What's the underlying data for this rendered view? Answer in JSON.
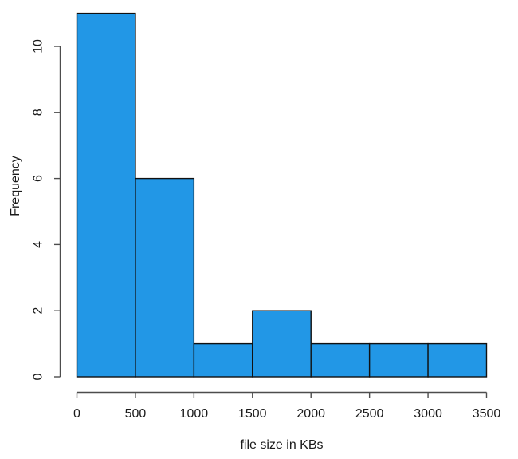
{
  "chart_data": {
    "type": "bar",
    "subtype": "histogram",
    "title": "",
    "xlabel": "file size in KBs",
    "ylabel": "Frequency",
    "breaks": [
      0,
      500,
      1000,
      1500,
      2000,
      2500,
      3000,
      3500
    ],
    "counts": [
      11,
      6,
      1,
      2,
      1,
      1,
      1
    ],
    "x_ticks": [
      0,
      500,
      1000,
      1500,
      2000,
      2500,
      3000,
      3500
    ],
    "y_ticks": [
      0,
      2,
      4,
      6,
      8,
      10
    ],
    "xlim": [
      0,
      3500
    ],
    "ylim": [
      0,
      11
    ],
    "grid": "off",
    "legend": "none",
    "bar_fill": "#2297E6",
    "bar_border": "#111111",
    "axis_color": "#4d4d4d",
    "text_color": "#1a1a1a",
    "background": "#ffffff"
  }
}
